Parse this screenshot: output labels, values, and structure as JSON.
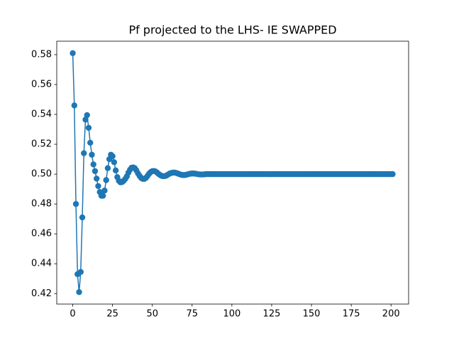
{
  "chart_data": {
    "type": "line",
    "title": "Pf projected to the LHS- IE SWAPPED",
    "color": "#1f77b4",
    "x": [
      0,
      1,
      2,
      3,
      4,
      5,
      6,
      7,
      8,
      9,
      10,
      11,
      12,
      13,
      14,
      15,
      16,
      17,
      18,
      19,
      20,
      21,
      22,
      23,
      24,
      25,
      26,
      27,
      28,
      29,
      30,
      31,
      32,
      33,
      34,
      35,
      36,
      37,
      38,
      39,
      40,
      41,
      42,
      43,
      44,
      45,
      46,
      47,
      48,
      49,
      50,
      51,
      52,
      53,
      54,
      55,
      56,
      57,
      58,
      59,
      60,
      61,
      62,
      63,
      64,
      65,
      66,
      67,
      68,
      69,
      70,
      71,
      72,
      73,
      74,
      75,
      76,
      77,
      78,
      79,
      80,
      81,
      82,
      83,
      84,
      85,
      86,
      87,
      88,
      89,
      90,
      91,
      92,
      93,
      94,
      95,
      96,
      97,
      98,
      99,
      100,
      101,
      102,
      103,
      104,
      105,
      106,
      107,
      108,
      109,
      110,
      111,
      112,
      113,
      114,
      115,
      116,
      117,
      118,
      119,
      120,
      121,
      122,
      123,
      124,
      125,
      126,
      127,
      128,
      129,
      130,
      131,
      132,
      133,
      134,
      135,
      136,
      137,
      138,
      139,
      140,
      141,
      142,
      143,
      144,
      145,
      146,
      147,
      148,
      149,
      150,
      151,
      152,
      153,
      154,
      155,
      156,
      157,
      158,
      159,
      160,
      161,
      162,
      163,
      164,
      165,
      166,
      167,
      168,
      169,
      170,
      171,
      172,
      173,
      174,
      175,
      176,
      177,
      178,
      179,
      180,
      181,
      182,
      183,
      184,
      185,
      186,
      187,
      188,
      189,
      190,
      191,
      192,
      193,
      194,
      195,
      196,
      197,
      198,
      199,
      200,
      201
    ],
    "values": [
      0.581,
      0.546,
      0.48,
      0.433,
      0.421,
      0.4345,
      0.471,
      0.514,
      0.5365,
      0.5395,
      0.531,
      0.521,
      0.513,
      0.5065,
      0.502,
      0.497,
      0.492,
      0.488,
      0.4855,
      0.4855,
      0.489,
      0.496,
      0.504,
      0.51,
      0.513,
      0.512,
      0.508,
      0.5025,
      0.498,
      0.4955,
      0.4945,
      0.4947,
      0.4955,
      0.4968,
      0.4985,
      0.501,
      0.503,
      0.5043,
      0.5045,
      0.504,
      0.5025,
      0.5005,
      0.4988,
      0.4975,
      0.4968,
      0.4968,
      0.4975,
      0.4988,
      0.5003,
      0.5014,
      0.502,
      0.5021,
      0.5018,
      0.501,
      0.5001,
      0.4993,
      0.4988,
      0.4986,
      0.4987,
      0.4991,
      0.4998,
      0.5004,
      0.5008,
      0.501,
      0.501,
      0.5008,
      0.5004,
      0.5,
      0.4996,
      0.4994,
      0.4994,
      0.4995,
      0.4998,
      0.5001,
      0.5003,
      0.5004,
      0.5004,
      0.5003,
      0.5001,
      0.4999,
      0.4998,
      0.4998,
      0.4998,
      0.4999,
      0.5,
      0.5,
      0.5,
      0.5,
      0.5,
      0.5,
      0.5,
      0.5,
      0.5,
      0.5,
      0.5,
      0.5,
      0.5,
      0.5,
      0.5,
      0.5,
      0.5,
      0.5,
      0.5,
      0.5,
      0.5,
      0.5,
      0.5,
      0.5,
      0.5,
      0.5,
      0.5,
      0.5,
      0.5,
      0.5,
      0.5,
      0.5,
      0.5,
      0.5,
      0.5,
      0.5,
      0.5,
      0.5,
      0.5,
      0.5,
      0.5,
      0.5,
      0.5,
      0.5,
      0.5,
      0.5,
      0.5,
      0.5,
      0.5,
      0.5,
      0.5,
      0.5,
      0.5,
      0.5,
      0.5,
      0.5,
      0.5,
      0.5,
      0.5,
      0.5,
      0.5,
      0.5,
      0.5,
      0.5,
      0.5,
      0.5,
      0.5,
      0.5,
      0.5,
      0.5,
      0.5,
      0.5,
      0.5,
      0.5,
      0.5,
      0.5,
      0.5,
      0.5,
      0.5,
      0.5,
      0.5,
      0.5,
      0.5,
      0.5,
      0.5,
      0.5,
      0.5,
      0.5,
      0.5,
      0.5,
      0.5,
      0.5,
      0.5,
      0.5,
      0.5,
      0.5,
      0.5,
      0.5,
      0.5,
      0.5,
      0.5,
      0.5,
      0.5,
      0.5,
      0.5,
      0.5,
      0.5,
      0.5,
      0.5,
      0.5,
      0.5,
      0.5,
      0.5,
      0.5,
      0.5,
      0.5,
      0.5,
      0.5
    ],
    "xlim": [
      -10.05,
      211.05
    ],
    "xticks": [
      0,
      25,
      50,
      75,
      100,
      125,
      150,
      175,
      200
    ],
    "ylim": [
      0.413,
      0.589
    ],
    "yticks": [
      0.42,
      0.44,
      0.46,
      0.48,
      {
        "value": 0.5,
        "label": "0.50"
      },
      0.52,
      0.54,
      0.56,
      0.58
    ]
  }
}
